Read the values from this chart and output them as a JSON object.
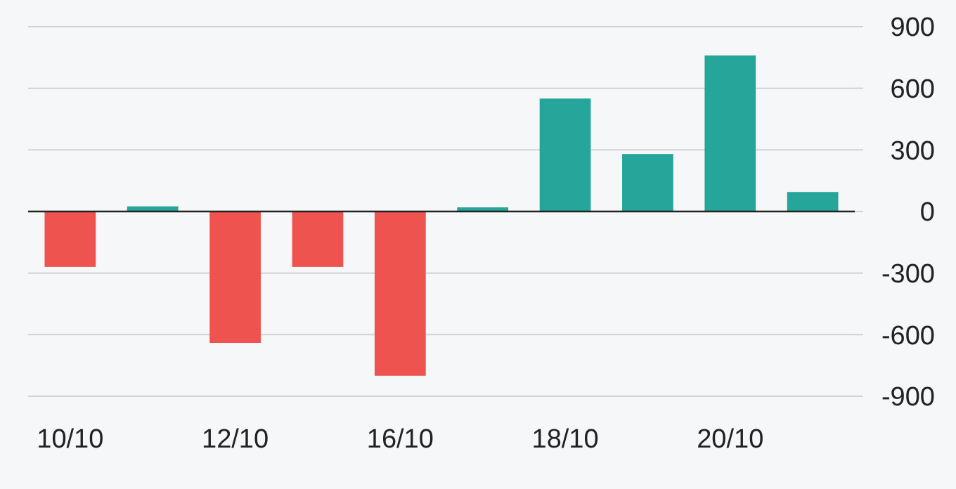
{
  "chart_data": {
    "type": "bar",
    "categories": [
      "10/10",
      null,
      "12/10",
      null,
      "16/10",
      null,
      "18/10",
      null,
      "20/10",
      null
    ],
    "values": [
      -270,
      25,
      -640,
      -270,
      -800,
      20,
      550,
      280,
      760,
      95
    ],
    "colors": [
      "#ef5350",
      "#26a69a",
      "#ef5350",
      "#ef5350",
      "#ef5350",
      "#26a69a",
      "#26a69a",
      "#26a69a",
      "#26a69a",
      "#26a69a"
    ],
    "ylim": [
      -900,
      900
    ],
    "yticks": [
      -900,
      -600,
      -300,
      0,
      300,
      600,
      900
    ],
    "grid": "y"
  }
}
